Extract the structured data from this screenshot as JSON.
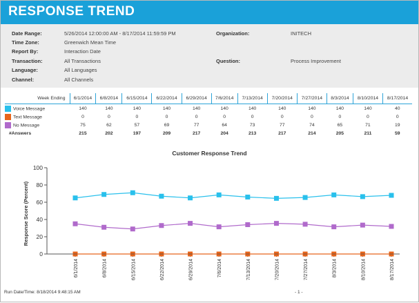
{
  "header": {
    "title": "RESPONSE TREND",
    "background": "#1aa1d9"
  },
  "info": {
    "date_range_label": "Date Range:",
    "date_range_value": "5/26/2014 12:00:00 AM - 8/17/2014 11:59:59 PM",
    "time_zone_label": "Time Zone:",
    "time_zone_value": "Greenwich Mean Time",
    "report_by_label": "Report By:",
    "report_by_value": "Interaction Date",
    "transaction_label": "Transaction:",
    "transaction_value": "All Transactions",
    "language_label": "Language:",
    "language_value": "All Languages",
    "channel_label": "Channel:",
    "channel_value": "All Channels",
    "organization_label": "Organization:",
    "organization_value": "INITECH",
    "question_label": "Question:",
    "question_value": "Process Improvement"
  },
  "table": {
    "week_ending_label": "Week Ending",
    "weeks": [
      "6/1/2014",
      "6/8/2014",
      "6/15/2014",
      "6/22/2014",
      "6/29/2014",
      "7/6/2014",
      "7/13/2014",
      "7/20/2014",
      "7/27/2014",
      "8/3/2014",
      "8/10/2014",
      "8/17/2014"
    ],
    "rows": [
      {
        "label": "Voice Message",
        "color": "#29c0ec",
        "values": [
          "140",
          "140",
          "140",
          "140",
          "140",
          "140",
          "140",
          "140",
          "140",
          "140",
          "140",
          "40"
        ]
      },
      {
        "label": "Text Message",
        "color": "#e8651a",
        "values": [
          "0",
          "0",
          "0",
          "0",
          "0",
          "0",
          "0",
          "0",
          "0",
          "0",
          "0",
          "0"
        ]
      },
      {
        "label": "No Message",
        "color": "#b06acb",
        "values": [
          "75",
          "62",
          "57",
          "69",
          "77",
          "64",
          "73",
          "77",
          "74",
          "65",
          "71",
          "19"
        ]
      }
    ],
    "answers_label": "#Answers",
    "answers": [
      "215",
      "202",
      "197",
      "209",
      "217",
      "204",
      "213",
      "217",
      "214",
      "205",
      "211",
      "59"
    ]
  },
  "chart_data": {
    "type": "line",
    "title": "Customer Response Trend",
    "ylabel": "Response Score (Percent)",
    "xlabel": "",
    "ylim": [
      0,
      100
    ],
    "yticks": [
      0,
      20,
      40,
      60,
      80,
      100
    ],
    "grid": false,
    "categories": [
      "6/1/2014",
      "6/8/2014",
      "6/15/2014",
      "6/22/2014",
      "6/29/2014",
      "7/6/2014",
      "7/13/2014",
      "7/20/2014",
      "7/27/2014",
      "8/3/2014",
      "8/10/2014",
      "8/17/2014"
    ],
    "series": [
      {
        "name": "Voice Message",
        "color": "#29c0ec",
        "marker": "square",
        "values": [
          65,
          69,
          71,
          67,
          65,
          68.5,
          66,
          64.5,
          65.5,
          68.5,
          66.5,
          68
        ]
      },
      {
        "name": "No Message",
        "color": "#b06acb",
        "marker": "square",
        "values": [
          35,
          31,
          29,
          33,
          35.5,
          31.5,
          34,
          35.5,
          34.5,
          31.5,
          33.5,
          32
        ]
      },
      {
        "name": "Text Message",
        "color": "#e8651a",
        "marker": "square",
        "values": [
          0,
          0,
          0,
          0,
          0,
          0,
          0,
          0,
          0,
          0,
          0,
          0
        ]
      }
    ]
  },
  "footer": {
    "run_date": "Run Date/Time: 8/18/2014 9:48:15 AM",
    "page": "- 1 -"
  }
}
